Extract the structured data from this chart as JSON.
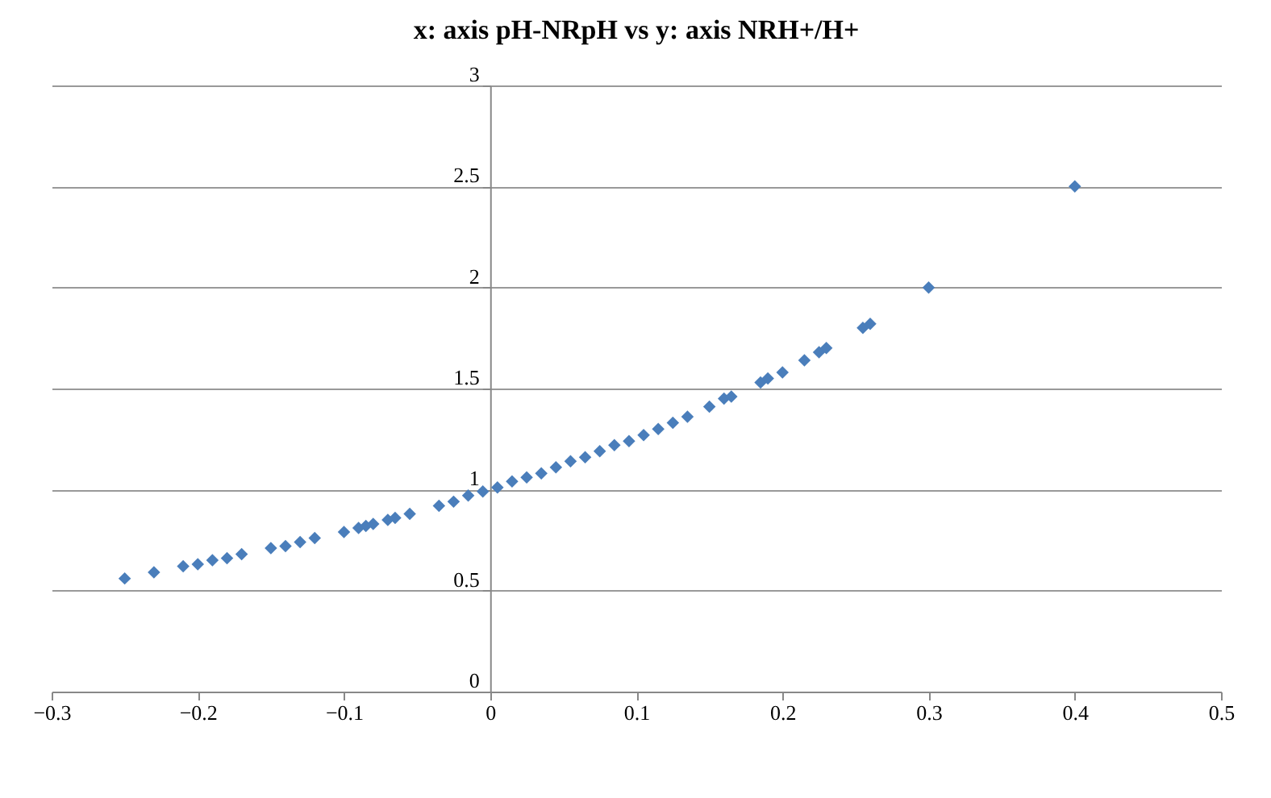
{
  "chart_data": {
    "type": "scatter",
    "title": "x: axis pH-NRpH vs y: axis NRH+/H+",
    "x": [
      -0.25,
      -0.23,
      -0.21,
      -0.2,
      -0.19,
      -0.18,
      -0.17,
      -0.15,
      -0.14,
      -0.13,
      -0.12,
      -0.1,
      -0.09,
      -0.085,
      -0.08,
      -0.07,
      -0.065,
      -0.055,
      -0.035,
      -0.025,
      -0.015,
      -0.005,
      0.005,
      0.015,
      0.025,
      0.035,
      0.045,
      0.055,
      0.065,
      0.075,
      0.085,
      0.095,
      0.105,
      0.115,
      0.125,
      0.135,
      0.15,
      0.16,
      0.165,
      0.185,
      0.19,
      0.2,
      0.215,
      0.225,
      0.23,
      0.255,
      0.26,
      0.3,
      0.4
    ],
    "series": [
      {
        "color": "#4a7ebb",
        "values": [
          0.56,
          0.59,
          0.62,
          0.63,
          0.65,
          0.66,
          0.68,
          0.71,
          0.72,
          0.74,
          0.76,
          0.79,
          0.81,
          0.82,
          0.83,
          0.85,
          0.86,
          0.88,
          0.92,
          0.94,
          0.97,
          0.99,
          1.01,
          1.04,
          1.06,
          1.08,
          1.11,
          1.14,
          1.16,
          1.19,
          1.22,
          1.24,
          1.27,
          1.3,
          1.33,
          1.36,
          1.41,
          1.45,
          1.46,
          1.53,
          1.55,
          1.58,
          1.64,
          1.68,
          1.7,
          1.8,
          1.82,
          2.0,
          2.5
        ]
      }
    ],
    "xlim": [
      -0.3,
      0.5
    ],
    "xticks": [
      -0.3,
      -0.2,
      -0.1,
      0,
      0.1,
      0.2,
      0.3,
      0.4,
      0.5
    ],
    "ylim": [
      0,
      3
    ],
    "yticks": [
      0,
      0.5,
      1,
      1.5,
      2,
      2.5,
      3
    ],
    "grid": "y",
    "marker": "diamond",
    "legend": false
  }
}
